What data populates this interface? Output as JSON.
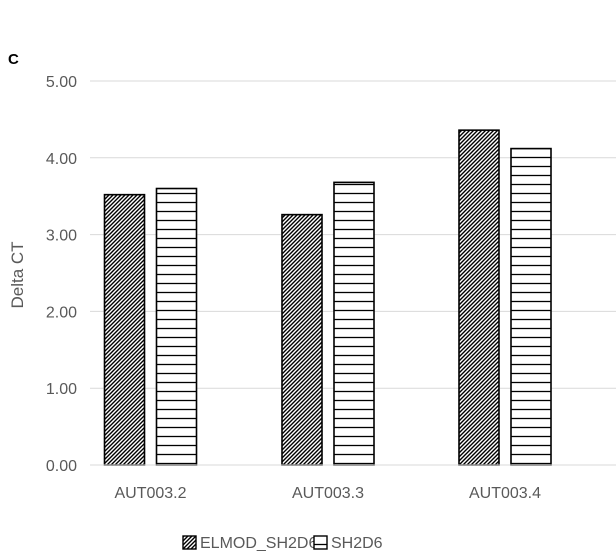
{
  "panel_label": "C",
  "chart_data": {
    "type": "bar",
    "categories": [
      "AUT003.2",
      "AUT003.3",
      "AUT003.4"
    ],
    "series": [
      {
        "name": "ELMOD_SH2D6",
        "values": [
          3.52,
          3.26,
          4.36
        ],
        "pattern": "diagonal-hatch"
      },
      {
        "name": "SH2D6",
        "values": [
          3.6,
          3.68,
          4.12
        ],
        "pattern": "horizontal-lines"
      }
    ],
    "title": "",
    "xlabel": "",
    "ylabel": "Delta CT",
    "ylim": [
      0,
      5
    ],
    "yticks": [
      "0.00",
      "1.00",
      "2.00",
      "3.00",
      "4.00",
      "5.00"
    ],
    "grid": true,
    "legend_position": "bottom",
    "colors": {
      "grid": "#d9d9d9",
      "text": "#595959",
      "bar_stroke": "#000000"
    }
  }
}
